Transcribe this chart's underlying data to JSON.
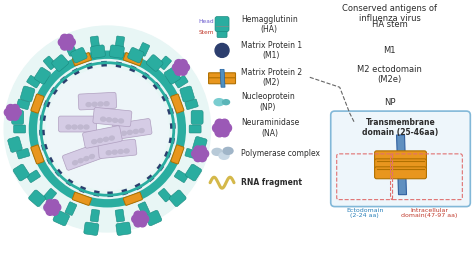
{
  "title": "Conserved antigens of\ninfluenza virus",
  "bg_color": "#ffffff",
  "legend_items": [
    {
      "label": "Hemagglutinin\n(HA)",
      "antigen": "HA stem",
      "icon_type": "ha"
    },
    {
      "label": "Matrix Protein 1\n(M1)",
      "antigen": "M1",
      "icon_type": "m1"
    },
    {
      "label": "Matrix Protein 2\n(M2)",
      "antigen": "M2 ectodomain\n(M2e)",
      "icon_type": "m2"
    },
    {
      "label": "Nucleoprotein\n(NP)",
      "antigen": "NP",
      "icon_type": "np"
    },
    {
      "label": "Neuraminidase\n(NA)",
      "antigen": "",
      "icon_type": "na"
    },
    {
      "label": "Polymerase complex",
      "antigen": "",
      "icon_type": "poly"
    },
    {
      "label": "RNA fragment",
      "antigen": "",
      "icon_type": "rna"
    }
  ],
  "teal": "#2aada0",
  "purple": "#9b59b6",
  "orange": "#e8961e",
  "dark_blue": "#34495e",
  "navy": "#2c3e6e",
  "light_teal_bg": "#e8f6f5",
  "inner_bg": "#eef6f9",
  "red_text": "#c0392b",
  "blue_text": "#2980b9",
  "dark_text": "#2c2c2c",
  "gray_text": "#666666",
  "head_color": "#6a5acd",
  "stem_color": "#c0392b",
  "rna_inner": "#d5cce5",
  "rna_protein": "#c0b8d0"
}
